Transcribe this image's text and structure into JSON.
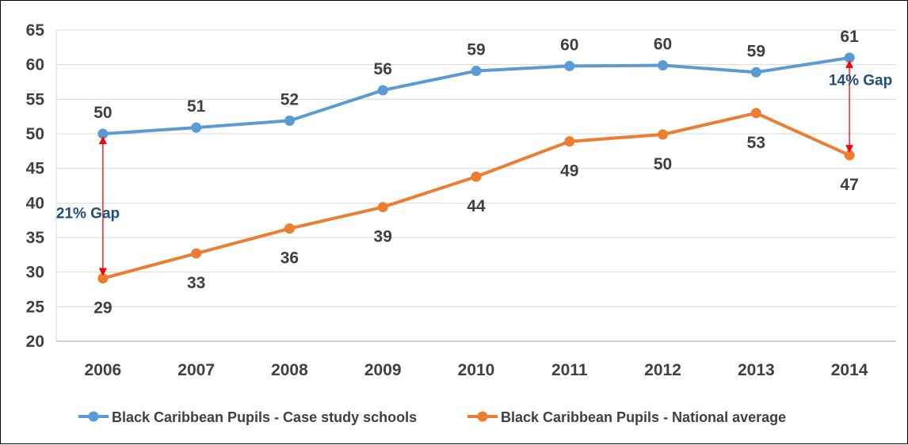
{
  "chart_data": {
    "type": "line",
    "title": "",
    "xlabel": "",
    "ylabel": "",
    "ylim": [
      20,
      65
    ],
    "yticks": [
      "20",
      "25",
      "30",
      "35",
      "40",
      "45",
      "50",
      "55",
      "60",
      "65"
    ],
    "categories": [
      "2006",
      "2007",
      "2008",
      "2009",
      "2010",
      "2011",
      "2012",
      "2013",
      "2014"
    ],
    "grid": true,
    "legend_position": "bottom",
    "series": [
      {
        "name": "Black Caribbean Pupils - Case study schools",
        "color": "#5b9bd5",
        "values": [
          50,
          50.9,
          51.9,
          56.3,
          59.1,
          59.8,
          59.9,
          58.9,
          61
        ],
        "labels": [
          "50",
          "51",
          "52",
          "56",
          "59",
          "60",
          "60",
          "59",
          "61"
        ],
        "label_position": "above"
      },
      {
        "name": "Black Caribbean Pupils - National average",
        "color": "#ed7d31",
        "values": [
          29.1,
          32.7,
          36.3,
          39.4,
          43.8,
          48.9,
          49.9,
          53,
          46.9
        ],
        "labels": [
          "29",
          "33",
          "36",
          "39",
          "44",
          "49",
          "50",
          "53",
          "47"
        ],
        "label_position": "below"
      }
    ],
    "annotations": [
      {
        "text": "21% Gap",
        "category": "2006",
        "from": 50,
        "to": 29.1,
        "color": "#1f4e79",
        "arrow_color": "#ff0000"
      },
      {
        "text": "14% Gap",
        "category": "2014",
        "from": 61,
        "to": 46.9,
        "color": "#1f4e79",
        "arrow_color": "#ff0000"
      }
    ]
  }
}
